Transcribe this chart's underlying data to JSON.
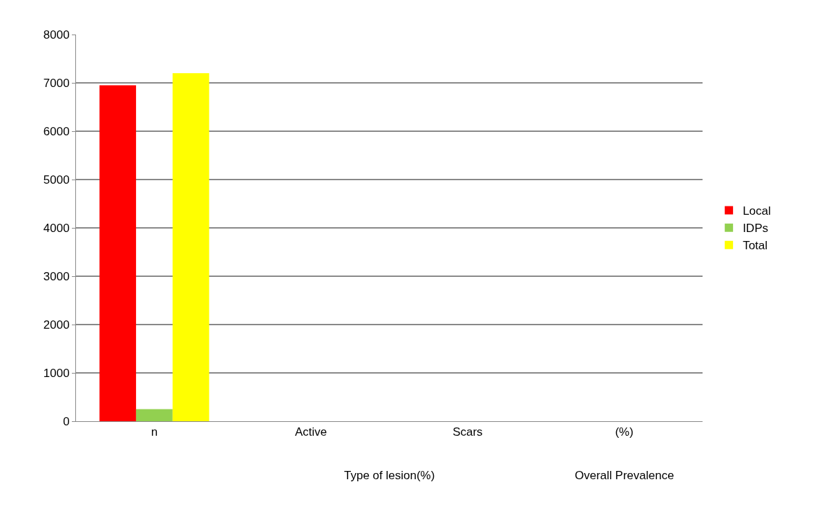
{
  "chart_data": {
    "type": "bar",
    "categories": [
      "n",
      "Active",
      "Scars",
      "(%)"
    ],
    "series": [
      {
        "name": "Local",
        "color": "#ff0000",
        "values": [
          6950,
          0,
          0,
          0
        ]
      },
      {
        "name": "IDPs",
        "color": "#92d050",
        "values": [
          250,
          0,
          0,
          0
        ]
      },
      {
        "name": "Total",
        "color": "#ffff00",
        "values": [
          7200,
          0,
          0,
          0
        ]
      }
    ],
    "annotations": [
      "Type of lesion(%)",
      "Overall Prevalence"
    ],
    "ylim": [
      0,
      8000
    ],
    "yticks": [
      0,
      1000,
      2000,
      3000,
      4000,
      5000,
      6000,
      7000,
      8000
    ],
    "grid": "y",
    "legend": "right"
  }
}
